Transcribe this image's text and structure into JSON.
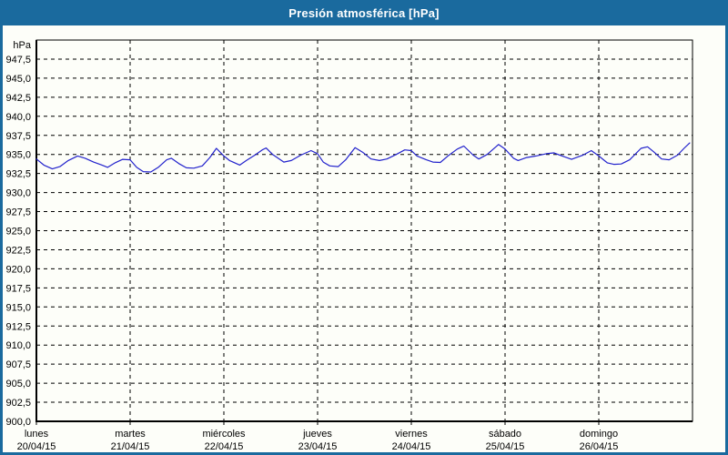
{
  "title": "Presión atmosférica [hPa]",
  "colors": {
    "frame_blue": "#1A6A9E",
    "title_text": "#FFFFFF",
    "background": "#FDFEF9",
    "plot_border": "#000000",
    "grid": "#000000",
    "text": "#000000",
    "line": "#2222CC"
  },
  "chart_data": {
    "type": "line",
    "title": "Presión atmosférica [hPa]",
    "unit_label": "hPa",
    "ylim": [
      900,
      950
    ],
    "ytick_step": 2.5,
    "grid": "dashed",
    "legend_position": "none",
    "yticks": [
      {
        "v": 947.5,
        "label": "947,5"
      },
      {
        "v": 945.0,
        "label": "945,0"
      },
      {
        "v": 942.5,
        "label": "942,5"
      },
      {
        "v": 940.0,
        "label": "940,0"
      },
      {
        "v": 937.5,
        "label": "937,5"
      },
      {
        "v": 935.0,
        "label": "935,0"
      },
      {
        "v": 932.5,
        "label": "932,5"
      },
      {
        "v": 930.0,
        "label": "930,0"
      },
      {
        "v": 927.5,
        "label": "927,5"
      },
      {
        "v": 925.0,
        "label": "925,0"
      },
      {
        "v": 922.5,
        "label": "922,5"
      },
      {
        "v": 920.0,
        "label": "920,0"
      },
      {
        "v": 917.5,
        "label": "917,5"
      },
      {
        "v": 915.0,
        "label": "915,0"
      },
      {
        "v": 912.5,
        "label": "912,5"
      },
      {
        "v": 910.0,
        "label": "910,0"
      },
      {
        "v": 907.5,
        "label": "907,5"
      },
      {
        "v": 905.0,
        "label": "905,0"
      },
      {
        "v": 902.5,
        "label": "902,5"
      },
      {
        "v": 900.0,
        "label": "900,0"
      }
    ],
    "days": [
      {
        "name": "lunes",
        "date": "20/04/15"
      },
      {
        "name": "martes",
        "date": "21/04/15"
      },
      {
        "name": "miércoles",
        "date": "22/04/15"
      },
      {
        "name": "jueves",
        "date": "23/04/15"
      },
      {
        "name": "viernes",
        "date": "24/04/15"
      },
      {
        "name": "sábado",
        "date": "25/04/15"
      },
      {
        "name": "domingo",
        "date": "26/04/15"
      }
    ],
    "series": [
      {
        "name": "Presión atmosférica",
        "color": "#2222CC",
        "points": [
          [
            0.0,
            934.4
          ],
          [
            0.08,
            933.6
          ],
          [
            0.17,
            933.1
          ],
          [
            0.25,
            933.4
          ],
          [
            0.34,
            934.2
          ],
          [
            0.44,
            934.8
          ],
          [
            0.52,
            934.5
          ],
          [
            0.61,
            934.0
          ],
          [
            0.7,
            933.6
          ],
          [
            0.76,
            933.3
          ],
          [
            0.84,
            933.9
          ],
          [
            0.92,
            934.35
          ],
          [
            1.0,
            934.3
          ],
          [
            1.07,
            933.3
          ],
          [
            1.14,
            932.75
          ],
          [
            1.22,
            932.7
          ],
          [
            1.3,
            933.3
          ],
          [
            1.39,
            934.3
          ],
          [
            1.44,
            934.5
          ],
          [
            1.52,
            933.8
          ],
          [
            1.6,
            933.25
          ],
          [
            1.68,
            933.2
          ],
          [
            1.77,
            933.5
          ],
          [
            1.85,
            934.6
          ],
          [
            1.92,
            935.8
          ],
          [
            2.0,
            934.8
          ],
          [
            2.06,
            934.2
          ],
          [
            2.17,
            933.6
          ],
          [
            2.24,
            934.2
          ],
          [
            2.33,
            934.9
          ],
          [
            2.41,
            935.6
          ],
          [
            2.45,
            935.85
          ],
          [
            2.52,
            935.0
          ],
          [
            2.64,
            934.0
          ],
          [
            2.72,
            934.2
          ],
          [
            2.82,
            934.9
          ],
          [
            2.93,
            935.5
          ],
          [
            3.0,
            935.1
          ],
          [
            3.06,
            934.0
          ],
          [
            3.13,
            933.5
          ],
          [
            3.22,
            933.4
          ],
          [
            3.3,
            934.3
          ],
          [
            3.4,
            935.9
          ],
          [
            3.48,
            935.3
          ],
          [
            3.57,
            934.4
          ],
          [
            3.66,
            934.2
          ],
          [
            3.74,
            934.4
          ],
          [
            3.84,
            935.0
          ],
          [
            3.93,
            935.6
          ],
          [
            4.0,
            935.5
          ],
          [
            4.06,
            934.8
          ],
          [
            4.16,
            934.3
          ],
          [
            4.23,
            934.0
          ],
          [
            4.31,
            933.95
          ],
          [
            4.39,
            934.8
          ],
          [
            4.49,
            935.7
          ],
          [
            4.56,
            936.1
          ],
          [
            4.66,
            934.9
          ],
          [
            4.72,
            934.4
          ],
          [
            4.81,
            935.0
          ],
          [
            4.93,
            936.3
          ],
          [
            5.0,
            935.7
          ],
          [
            5.09,
            934.5
          ],
          [
            5.14,
            934.2
          ],
          [
            5.23,
            934.6
          ],
          [
            5.33,
            934.8
          ],
          [
            5.44,
            935.1
          ],
          [
            5.52,
            935.2
          ],
          [
            5.61,
            934.8
          ],
          [
            5.71,
            934.35
          ],
          [
            5.83,
            934.9
          ],
          [
            5.92,
            935.5
          ],
          [
            6.0,
            934.8
          ],
          [
            6.09,
            933.9
          ],
          [
            6.16,
            933.7
          ],
          [
            6.24,
            933.75
          ],
          [
            6.33,
            934.3
          ],
          [
            6.45,
            935.8
          ],
          [
            6.52,
            936.0
          ],
          [
            6.59,
            935.3
          ],
          [
            6.67,
            934.4
          ],
          [
            6.75,
            934.3
          ],
          [
            6.84,
            934.9
          ],
          [
            6.91,
            935.8
          ],
          [
            6.97,
            936.5
          ]
        ]
      }
    ]
  }
}
